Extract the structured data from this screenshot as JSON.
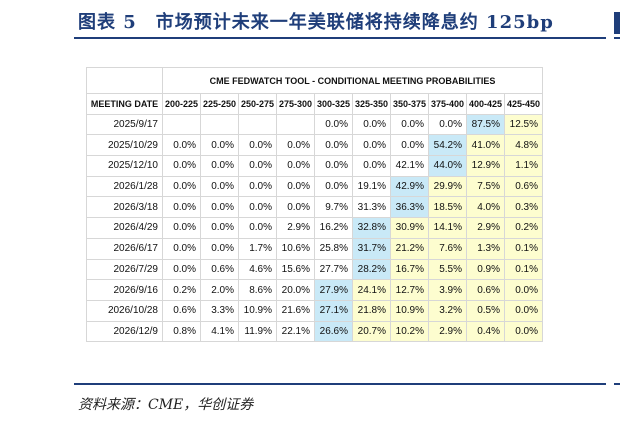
{
  "title": "图表 5　市场预计未来一年美联储将持续降息约 125bp",
  "table": {
    "super_header": "CME FEDWATCH TOOL - CONDITIONAL MEETING PROBABILITIES",
    "columns": [
      "MEETING DATE",
      "200-225",
      "225-250",
      "250-275",
      "275-300",
      "300-325",
      "325-350",
      "350-375",
      "375-400",
      "400-425",
      "425-450"
    ],
    "rows": [
      {
        "date": "2025/9/17",
        "cells": [
          "",
          "",
          "",
          "",
          "0.0%",
          "0.0%",
          "0.0%",
          "0.0%",
          "87.5%",
          "12.5%"
        ],
        "modal": 8
      },
      {
        "date": "2025/10/29",
        "cells": [
          "0.0%",
          "0.0%",
          "0.0%",
          "0.0%",
          "0.0%",
          "0.0%",
          "0.0%",
          "54.2%",
          "41.0%",
          "4.8%"
        ],
        "modal": 7
      },
      {
        "date": "2025/12/10",
        "cells": [
          "0.0%",
          "0.0%",
          "0.0%",
          "0.0%",
          "0.0%",
          "0.0%",
          "42.1%",
          "44.0%",
          "12.9%",
          "1.1%"
        ],
        "modal": 7
      },
      {
        "date": "2026/1/28",
        "cells": [
          "0.0%",
          "0.0%",
          "0.0%",
          "0.0%",
          "0.0%",
          "19.1%",
          "42.9%",
          "29.9%",
          "7.5%",
          "0.6%"
        ],
        "modal": 6
      },
      {
        "date": "2026/3/18",
        "cells": [
          "0.0%",
          "0.0%",
          "0.0%",
          "0.0%",
          "9.7%",
          "31.3%",
          "36.3%",
          "18.5%",
          "4.0%",
          "0.3%"
        ],
        "modal": 6
      },
      {
        "date": "2026/4/29",
        "cells": [
          "0.0%",
          "0.0%",
          "0.0%",
          "2.9%",
          "16.2%",
          "32.8%",
          "30.9%",
          "14.1%",
          "2.9%",
          "0.2%"
        ],
        "modal": 5
      },
      {
        "date": "2026/6/17",
        "cells": [
          "0.0%",
          "0.0%",
          "1.7%",
          "10.6%",
          "25.8%",
          "31.7%",
          "21.2%",
          "7.6%",
          "1.3%",
          "0.1%"
        ],
        "modal": 5
      },
      {
        "date": "2026/7/29",
        "cells": [
          "0.0%",
          "0.6%",
          "4.6%",
          "15.6%",
          "27.7%",
          "28.2%",
          "16.7%",
          "5.5%",
          "0.9%",
          "0.1%"
        ],
        "modal": 5
      },
      {
        "date": "2026/9/16",
        "cells": [
          "0.2%",
          "2.0%",
          "8.6%",
          "20.0%",
          "27.9%",
          "24.1%",
          "12.7%",
          "3.9%",
          "0.6%",
          "0.0%"
        ],
        "modal": 4
      },
      {
        "date": "2026/10/28",
        "cells": [
          "0.6%",
          "3.3%",
          "10.9%",
          "21.6%",
          "27.1%",
          "21.8%",
          "10.9%",
          "3.2%",
          "0.5%",
          "0.0%"
        ],
        "modal": 4
      },
      {
        "date": "2026/12/9",
        "cells": [
          "0.8%",
          "4.1%",
          "11.9%",
          "22.1%",
          "26.6%",
          "20.7%",
          "10.2%",
          "2.9%",
          "0.4%",
          "0.0%"
        ],
        "modal": 4
      }
    ]
  },
  "source": "资料来源：CME，华创证券",
  "colors": {
    "accent": "#1f3e7a",
    "modal_cell": "#c9e9f7",
    "above_modal_cell": "#fdfdcf"
  }
}
